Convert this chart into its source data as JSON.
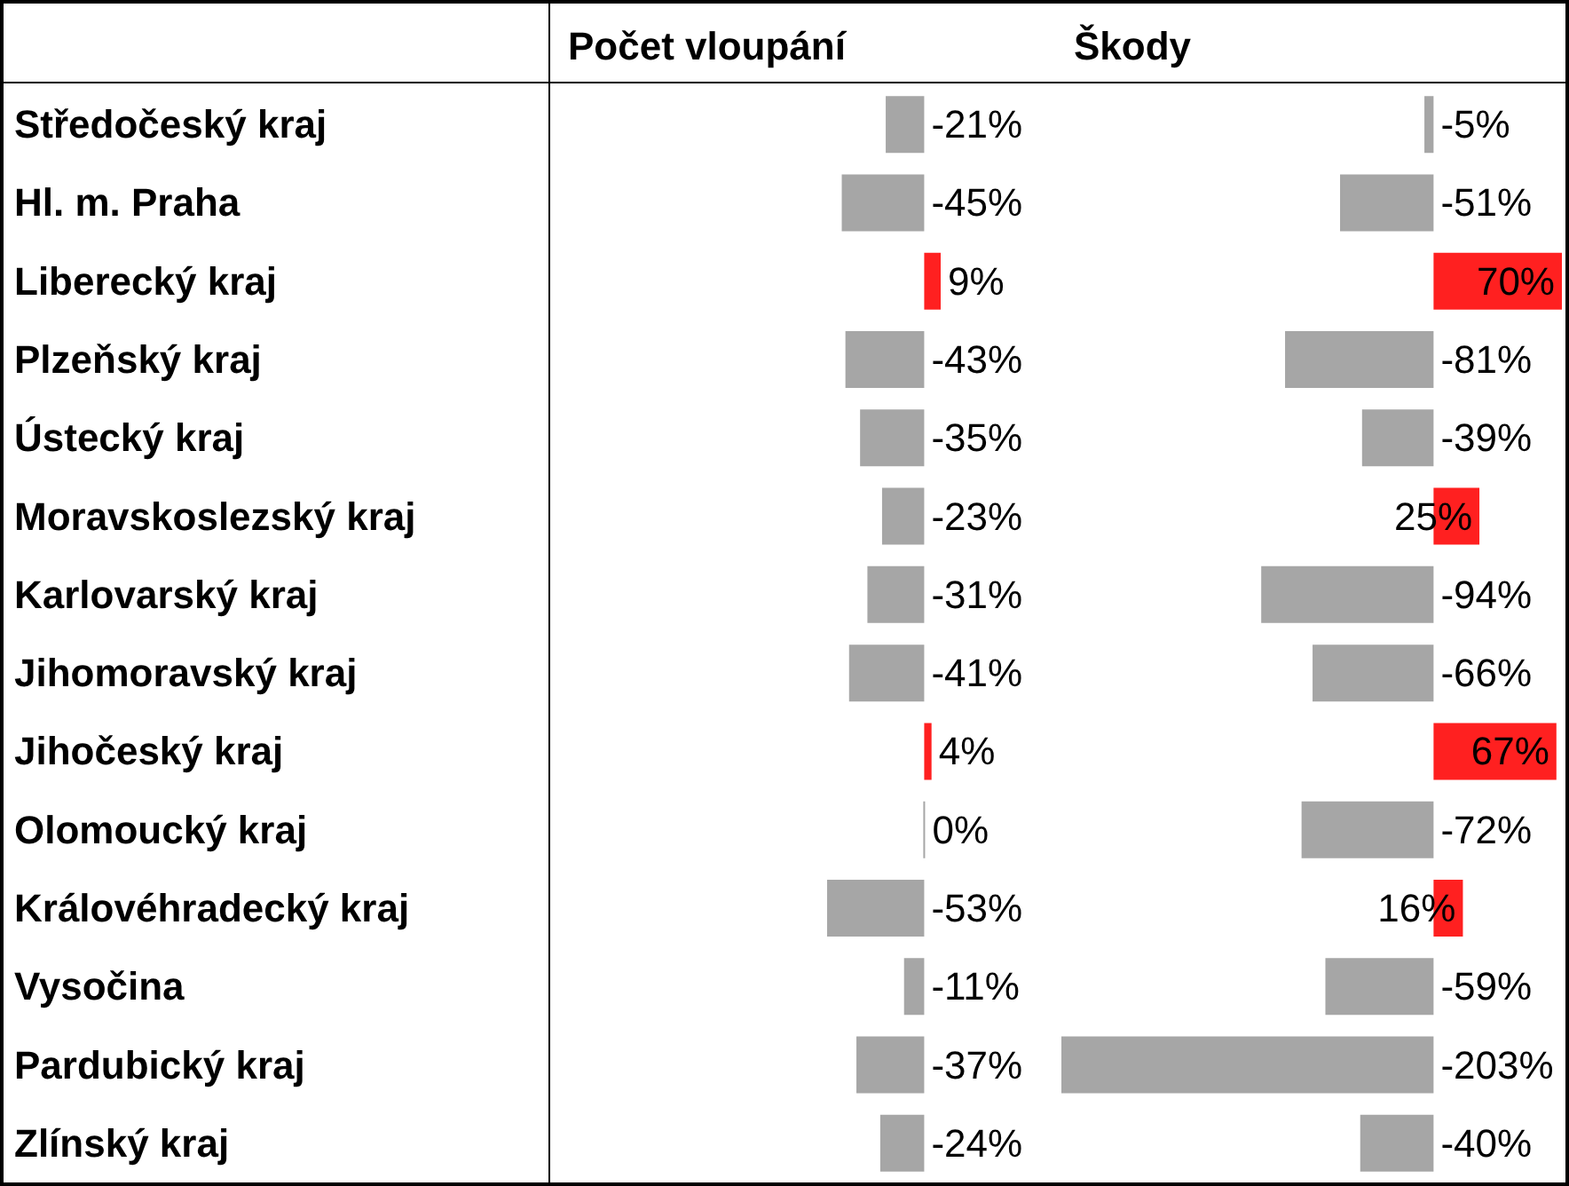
{
  "chart_data": [
    {
      "type": "bar",
      "orientation": "horizontal",
      "title": "Počet vloupání",
      "categories": [
        "Středočeský kraj",
        "Hl. m. Praha",
        "Liberecký kraj",
        "Plzeňský kraj",
        "Ústecký kraj",
        "Moravskoslezský kraj",
        "Karlovarský kraj",
        "Jihomoravský kraj",
        "Jihočeský kraj",
        "Olomoucký kraj",
        "Královéhradecký kraj",
        "Vysočina",
        "Pardubický kraj",
        "Zlínský kraj"
      ],
      "values": [
        -21,
        -45,
        9,
        -43,
        -35,
        -23,
        -31,
        -41,
        4,
        0,
        -53,
        -11,
        -37,
        -24
      ],
      "colors": [
        "#a6a6a6",
        "#a6a6a6",
        "#ff2020",
        "#a6a6a6",
        "#a6a6a6",
        "#a6a6a6",
        "#a6a6a6",
        "#a6a6a6",
        "#ff2020",
        "#a6a6a6",
        "#a6a6a6",
        "#a6a6a6",
        "#a6a6a6",
        "#a6a6a6"
      ],
      "value_labels": [
        "-21%",
        "-45%",
        "9%",
        "-43%",
        "-35%",
        "-23%",
        "-31%",
        "-41%",
        "4%",
        "0%",
        "-53%",
        "-11%",
        "-37%",
        "-24%"
      ],
      "tick_labels": "y",
      "grid": false
    },
    {
      "type": "bar",
      "orientation": "horizontal",
      "title": "Škody",
      "categories": [
        null,
        null,
        null,
        null,
        null,
        null,
        null,
        null,
        null,
        null,
        null,
        null,
        null,
        null
      ],
      "values": [
        -5,
        -51,
        70,
        -81,
        -39,
        25,
        -94,
        -66,
        67,
        -72,
        16,
        -59,
        -203,
        -40
      ],
      "colors": [
        "#a6a6a6",
        "#a6a6a6",
        "#ff2020",
        "#a6a6a6",
        "#a6a6a6",
        "#ff2020",
        "#a6a6a6",
        "#a6a6a6",
        "#ff2020",
        "#a6a6a6",
        "#ff2020",
        "#a6a6a6",
        "#a6a6a6",
        "#a6a6a6"
      ],
      "value_labels": [
        "-5%",
        "-51%",
        "70%",
        "-81%",
        "-39%",
        "25%",
        "-94%",
        "-66%",
        "67%",
        "-72%",
        "16%",
        "-59%",
        "-203%",
        "-40%"
      ],
      "tick_labels": false,
      "grid": false
    }
  ]
}
